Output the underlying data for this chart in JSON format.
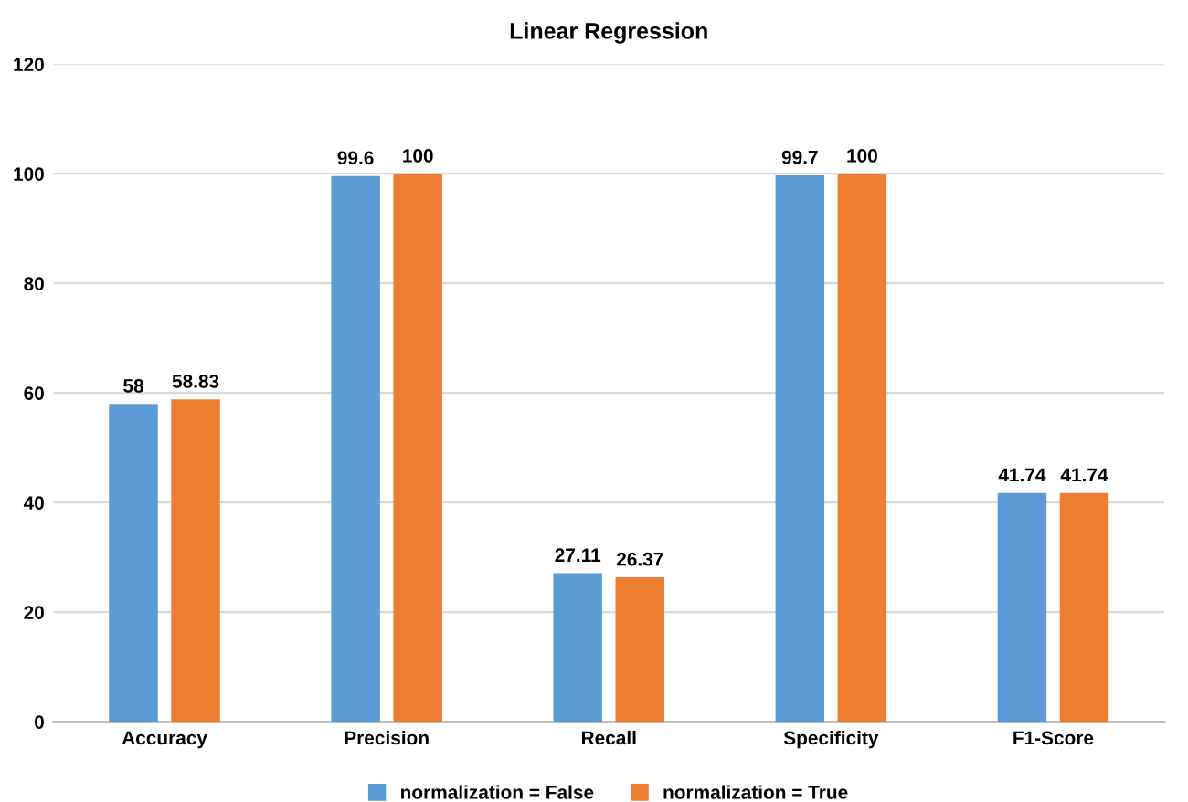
{
  "chart_data": {
    "type": "bar",
    "title": "Linear Regression",
    "categories": [
      "Accuracy",
      "Precision",
      "Recall",
      "Specificity",
      "F1-Score"
    ],
    "series": [
      {
        "name": "normalization = False",
        "color": "#5b9bd5",
        "values": [
          58,
          99.6,
          27.11,
          99.7,
          41.74
        ]
      },
      {
        "name": "normalization = True",
        "color": "#ed7d31",
        "values": [
          58.83,
          100,
          26.37,
          100,
          41.74
        ]
      }
    ],
    "ylim": [
      0,
      120
    ],
    "yticks": [
      0,
      20,
      40,
      60,
      80,
      100,
      120
    ],
    "grid": "y",
    "legend": "bottom",
    "data_labels": true
  }
}
